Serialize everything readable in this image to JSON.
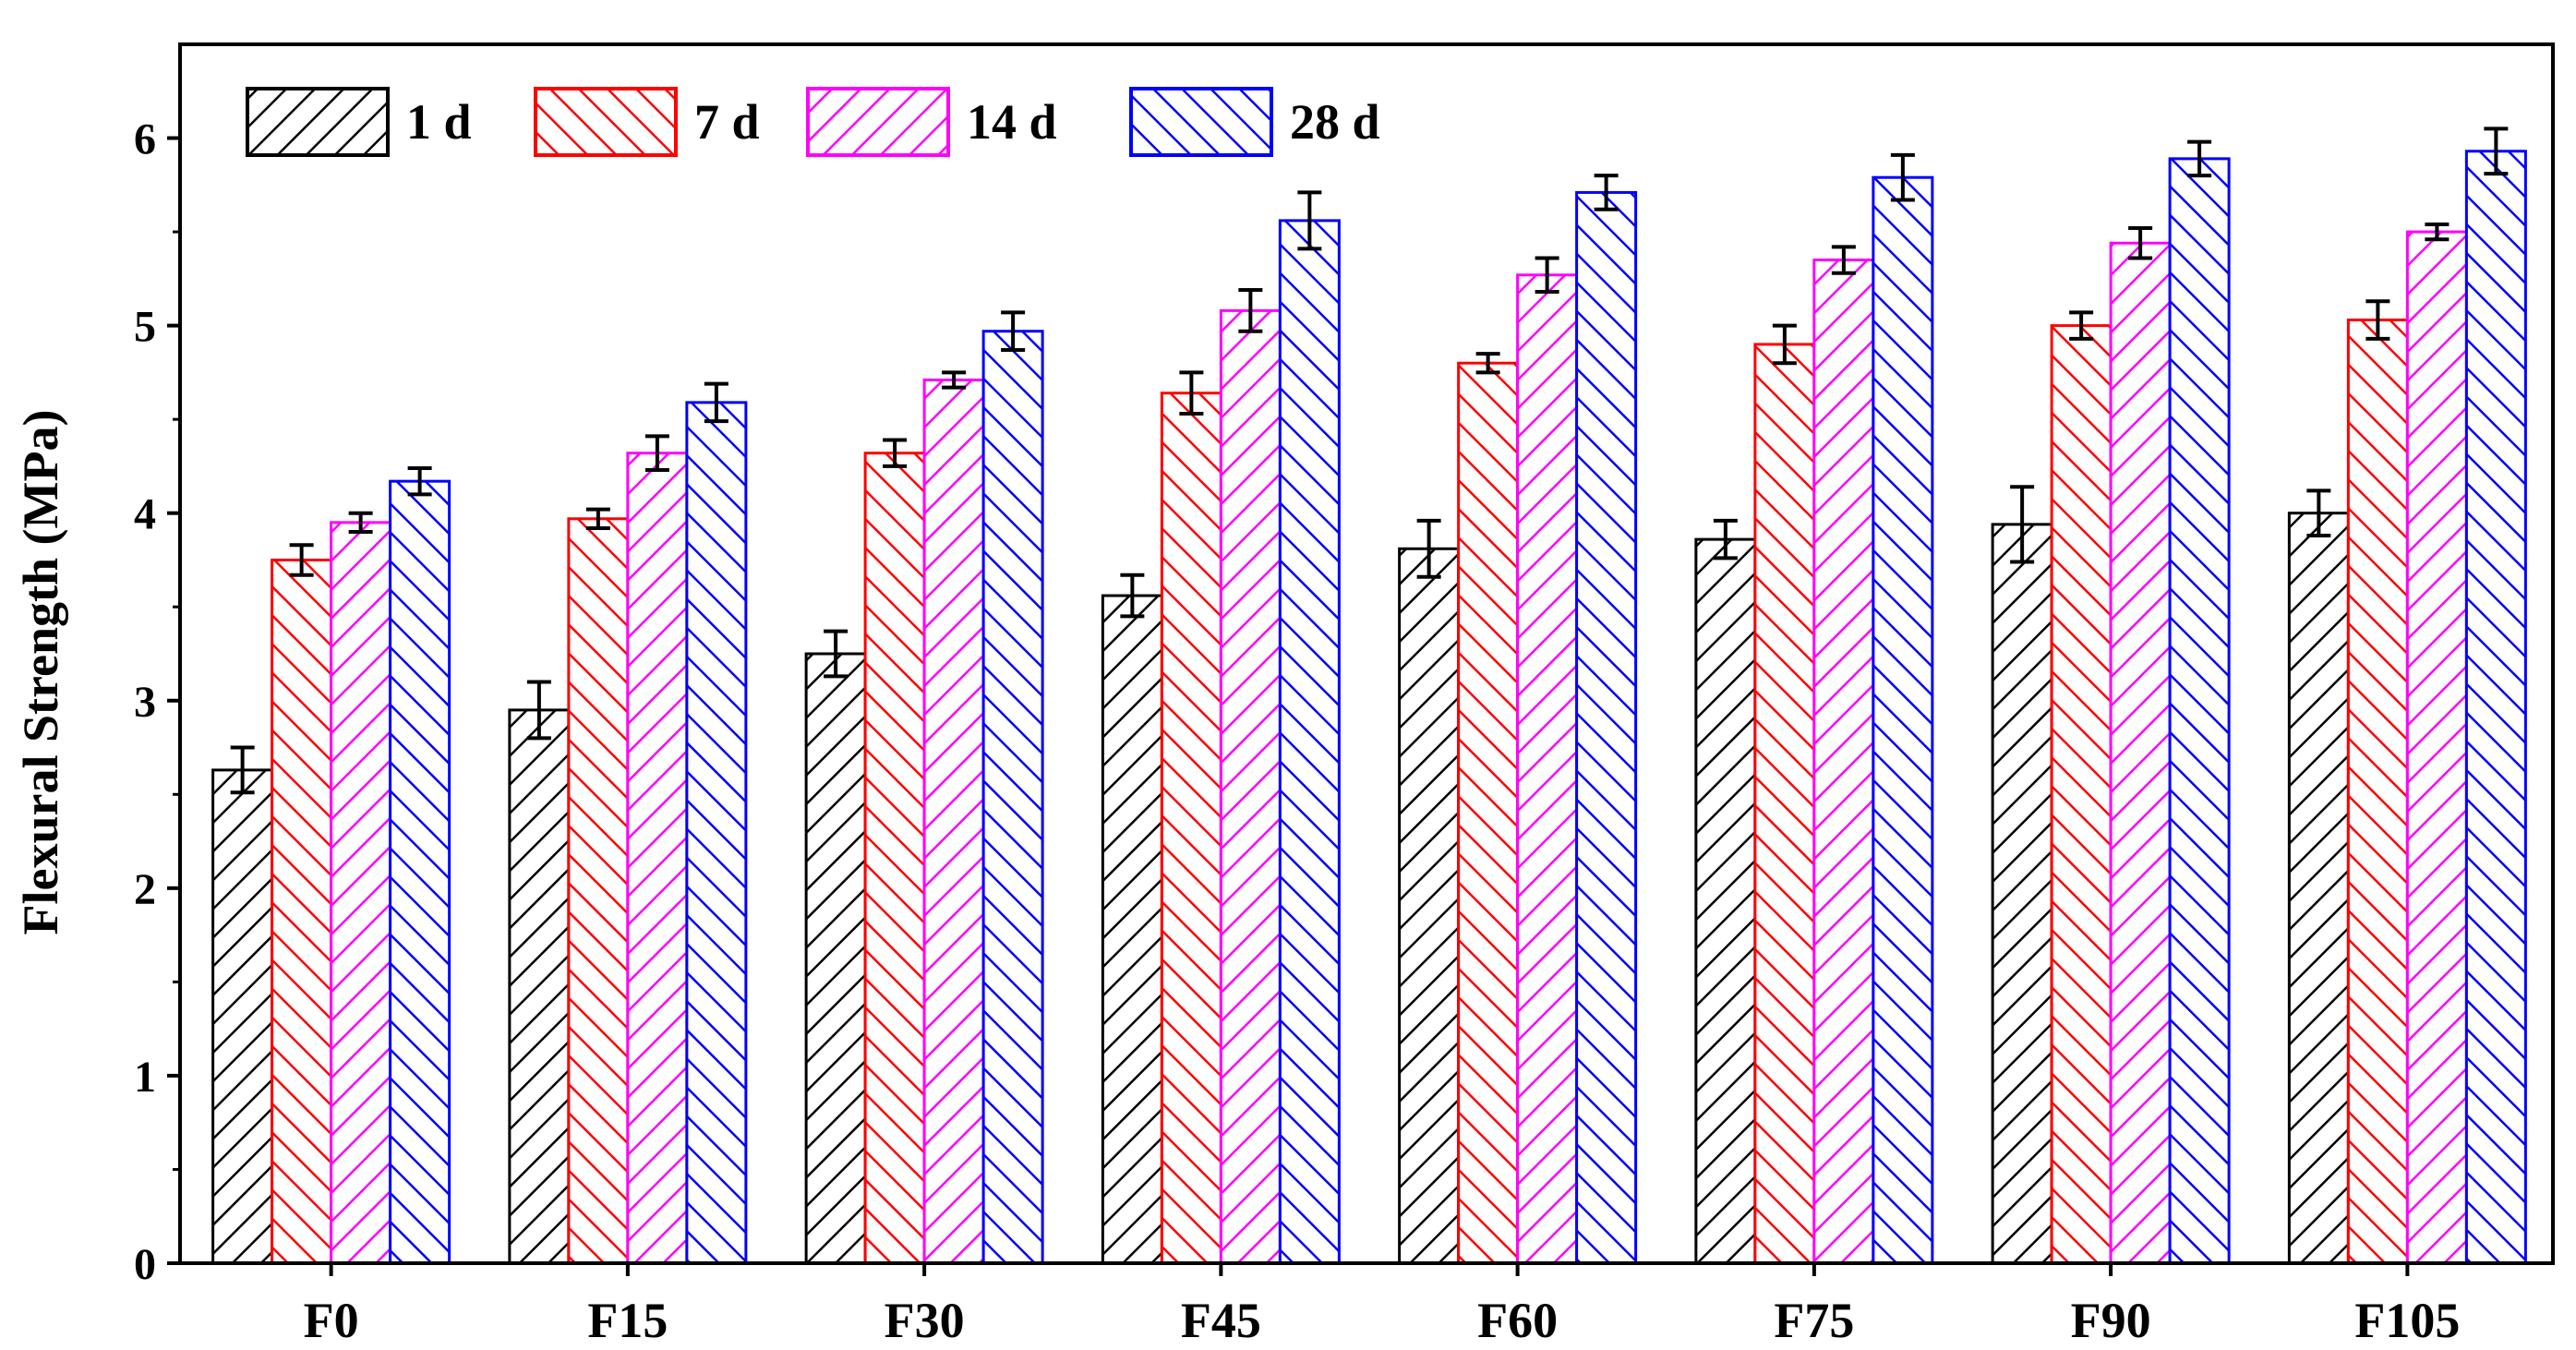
{
  "chart_data": {
    "type": "bar",
    "title": "",
    "xlabel": "",
    "ylabel": "Flexural Strength (MPa)",
    "ylim": [
      0,
      6.5
    ],
    "yticks": [
      0,
      1,
      2,
      3,
      4,
      5,
      6
    ],
    "grid": false,
    "legend_position": "top-left",
    "categories": [
      "F0",
      "F15",
      "F30",
      "F45",
      "F60",
      "F75",
      "F90",
      "F105"
    ],
    "series": [
      {
        "name": "1 d",
        "color": "#000000",
        "hatch": "diagonal-up",
        "values": [
          2.63,
          2.95,
          3.25,
          3.56,
          3.81,
          3.86,
          3.94,
          4.0
        ],
        "errors": [
          0.12,
          0.15,
          0.12,
          0.11,
          0.15,
          0.1,
          0.2,
          0.12
        ]
      },
      {
        "name": "7 d",
        "color": "#ff0000",
        "hatch": "diagonal-down",
        "values": [
          3.75,
          3.97,
          4.32,
          4.64,
          4.8,
          4.9,
          5.0,
          5.03
        ],
        "errors": [
          0.08,
          0.05,
          0.07,
          0.11,
          0.05,
          0.1,
          0.07,
          0.1
        ]
      },
      {
        "name": "14 d",
        "color": "#ff00ff",
        "hatch": "diagonal-up",
        "values": [
          3.95,
          4.32,
          4.71,
          5.08,
          5.27,
          5.35,
          5.44,
          5.5
        ],
        "errors": [
          0.05,
          0.09,
          0.04,
          0.11,
          0.09,
          0.07,
          0.08,
          0.04
        ]
      },
      {
        "name": "28 d",
        "color": "#0000ff",
        "hatch": "diagonal-down",
        "values": [
          4.17,
          4.59,
          4.97,
          5.56,
          5.71,
          5.79,
          5.89,
          5.93
        ],
        "errors": [
          0.07,
          0.1,
          0.1,
          0.15,
          0.09,
          0.12,
          0.09,
          0.12
        ]
      }
    ]
  }
}
